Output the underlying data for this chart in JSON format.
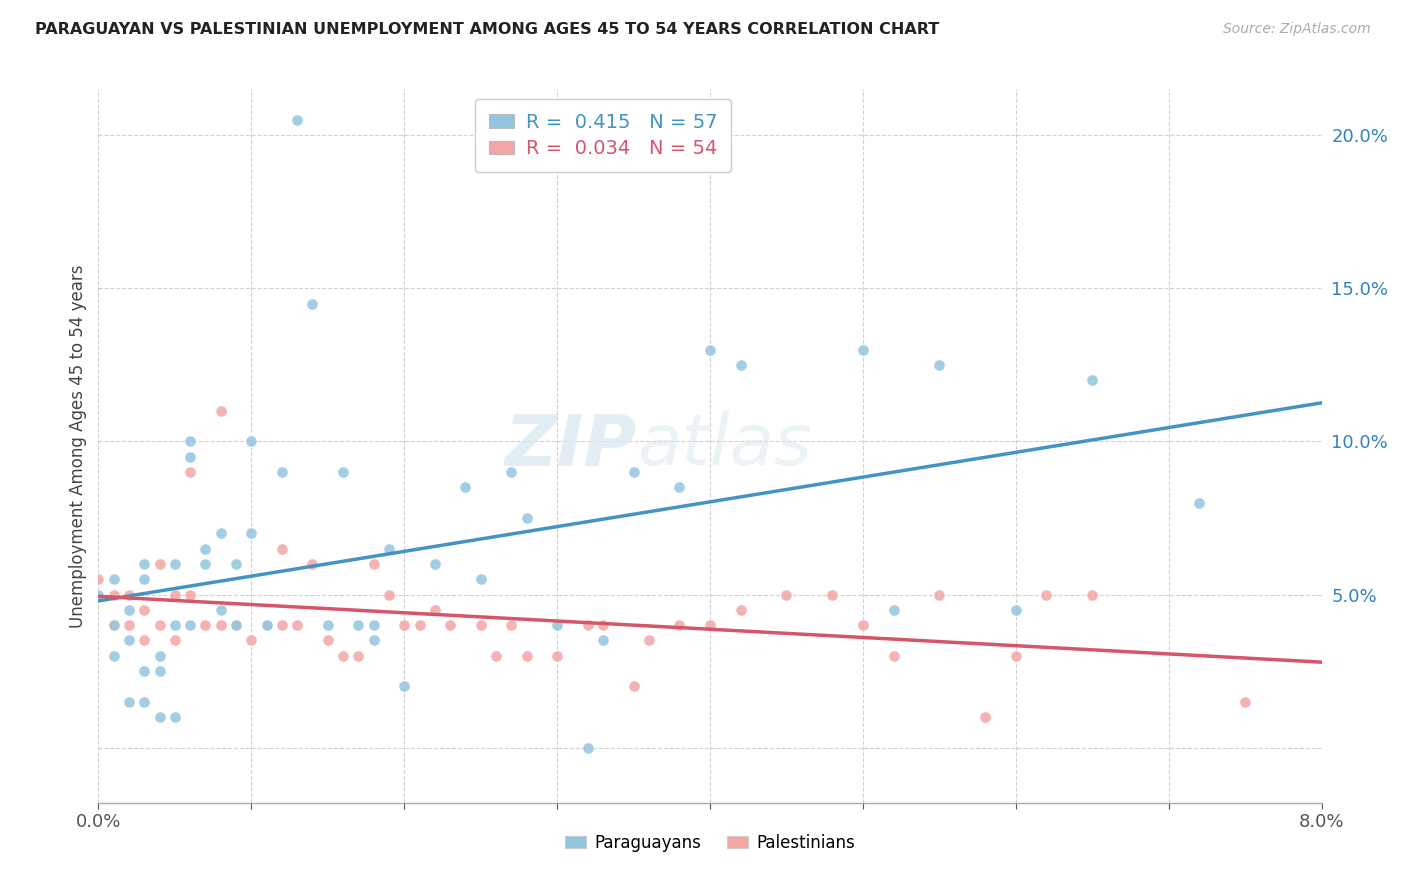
{
  "title": "PARAGUAYAN VS PALESTINIAN UNEMPLOYMENT AMONG AGES 45 TO 54 YEARS CORRELATION CHART",
  "source": "Source: ZipAtlas.com",
  "ylabel": "Unemployment Among Ages 45 to 54 years",
  "watermark_zip": "ZIP",
  "watermark_atlas": "atlas",
  "paraguayan_color": "#92c5de",
  "palestinian_color": "#f4a5a5",
  "line_blue": "#4393c3",
  "line_pink": "#d6556a",
  "R_paraguayan": 0.415,
  "N_paraguayan": 57,
  "R_palestinian": 0.034,
  "N_palestinian": 54,
  "xlim": [
    0.0,
    0.08
  ],
  "ylim": [
    -0.018,
    0.215
  ],
  "yticks": [
    0.0,
    0.05,
    0.1,
    0.15,
    0.2
  ],
  "xtick_positions": [
    0.0,
    0.01,
    0.02,
    0.03,
    0.04,
    0.05,
    0.06,
    0.07,
    0.08
  ],
  "paraguayan_x": [
    0.0,
    0.001,
    0.001,
    0.001,
    0.002,
    0.002,
    0.002,
    0.003,
    0.003,
    0.003,
    0.003,
    0.004,
    0.004,
    0.004,
    0.005,
    0.005,
    0.005,
    0.006,
    0.006,
    0.006,
    0.007,
    0.007,
    0.008,
    0.008,
    0.009,
    0.009,
    0.01,
    0.01,
    0.011,
    0.012,
    0.013,
    0.014,
    0.015,
    0.016,
    0.017,
    0.018,
    0.018,
    0.019,
    0.02,
    0.022,
    0.024,
    0.025,
    0.027,
    0.028,
    0.03,
    0.032,
    0.033,
    0.035,
    0.038,
    0.04,
    0.042,
    0.05,
    0.052,
    0.055,
    0.06,
    0.065,
    0.072
  ],
  "paraguayan_y": [
    0.05,
    0.055,
    0.04,
    0.03,
    0.045,
    0.035,
    0.015,
    0.06,
    0.055,
    0.025,
    0.015,
    0.03,
    0.025,
    0.01,
    0.06,
    0.04,
    0.01,
    0.1,
    0.095,
    0.04,
    0.065,
    0.06,
    0.07,
    0.045,
    0.06,
    0.04,
    0.1,
    0.07,
    0.04,
    0.09,
    0.205,
    0.145,
    0.04,
    0.09,
    0.04,
    0.04,
    0.035,
    0.065,
    0.02,
    0.06,
    0.085,
    0.055,
    0.09,
    0.075,
    0.04,
    0.0,
    0.035,
    0.09,
    0.085,
    0.13,
    0.125,
    0.13,
    0.045,
    0.125,
    0.045,
    0.12,
    0.08
  ],
  "palestinian_x": [
    0.0,
    0.001,
    0.001,
    0.002,
    0.002,
    0.003,
    0.003,
    0.004,
    0.004,
    0.005,
    0.005,
    0.006,
    0.006,
    0.007,
    0.008,
    0.008,
    0.009,
    0.01,
    0.011,
    0.012,
    0.012,
    0.013,
    0.014,
    0.015,
    0.016,
    0.017,
    0.018,
    0.019,
    0.02,
    0.021,
    0.022,
    0.023,
    0.025,
    0.026,
    0.027,
    0.028,
    0.03,
    0.032,
    0.033,
    0.035,
    0.036,
    0.038,
    0.04,
    0.042,
    0.045,
    0.048,
    0.05,
    0.052,
    0.055,
    0.058,
    0.06,
    0.062,
    0.065,
    0.075
  ],
  "palestinian_y": [
    0.055,
    0.05,
    0.04,
    0.05,
    0.04,
    0.045,
    0.035,
    0.06,
    0.04,
    0.05,
    0.035,
    0.09,
    0.05,
    0.04,
    0.11,
    0.04,
    0.04,
    0.035,
    0.04,
    0.065,
    0.04,
    0.04,
    0.06,
    0.035,
    0.03,
    0.03,
    0.06,
    0.05,
    0.04,
    0.04,
    0.045,
    0.04,
    0.04,
    0.03,
    0.04,
    0.03,
    0.03,
    0.04,
    0.04,
    0.02,
    0.035,
    0.04,
    0.04,
    0.045,
    0.05,
    0.05,
    0.04,
    0.03,
    0.05,
    0.01,
    0.03,
    0.05,
    0.05,
    0.015
  ]
}
